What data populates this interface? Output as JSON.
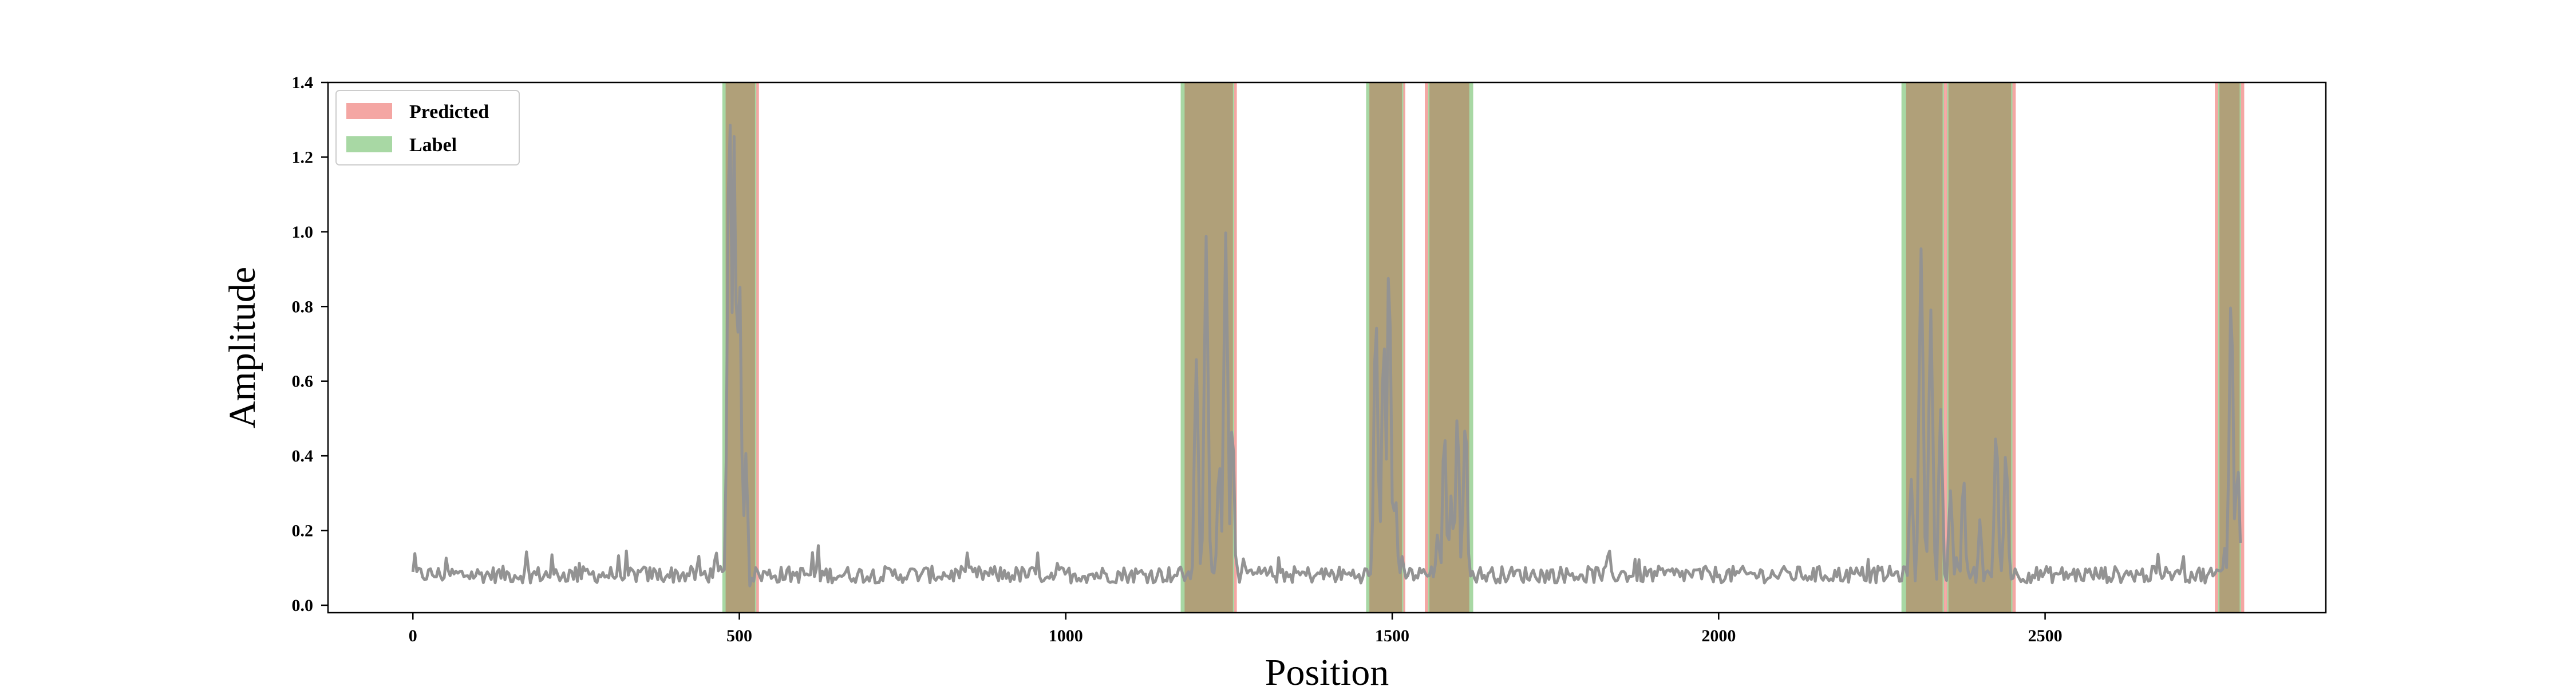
{
  "chart_data": {
    "type": "line",
    "title": "",
    "xlabel": "Position",
    "ylabel": "Amplitude",
    "xlim": [
      -130,
      2930
    ],
    "ylim": [
      -0.02,
      1.4
    ],
    "xticks": [
      0,
      500,
      1000,
      1500,
      2000,
      2500
    ],
    "yticks": [
      0.0,
      0.2,
      0.4,
      0.6,
      0.8,
      1.0,
      1.2,
      1.4
    ],
    "xtick_labels": [
      "0",
      "500",
      "1000",
      "1500",
      "2000",
      "2500"
    ],
    "ytick_labels": [
      "0.0",
      "0.2",
      "0.4",
      "0.6",
      "0.8",
      "1.0",
      "1.2",
      "1.4"
    ],
    "legend": {
      "location": "upper-left",
      "entries": [
        {
          "label": "Predicted",
          "color": "#f4a6a3"
        },
        {
          "label": "Label",
          "color": "#a8d8a4"
        }
      ]
    },
    "colors": {
      "signal": "#939393",
      "predicted": "#f4a6a3",
      "label": "#a8d8a4",
      "overlap": "#b0a079"
    },
    "predicted_intervals": [
      [
        477,
        530
      ],
      [
        1180,
        1262
      ],
      [
        1463,
        1520
      ],
      [
        1550,
        1620
      ],
      [
        2285,
        2347
      ],
      [
        2347,
        2455
      ],
      [
        2760,
        2805
      ]
    ],
    "label_intervals": [
      [
        474,
        526
      ],
      [
        1176,
        1258
      ],
      [
        1460,
        1517
      ],
      [
        1555,
        1624
      ],
      [
        2280,
        2345
      ],
      [
        2350,
        2450
      ],
      [
        2765,
        2800
      ]
    ],
    "baseline": {
      "mean": 0.082,
      "amplitude": 0.03,
      "from": 0,
      "to": 2800
    },
    "peaks": [
      {
        "x": 485,
        "y": 1.33
      },
      {
        "x": 492,
        "y": 1.25
      },
      {
        "x": 500,
        "y": 0.88
      },
      {
        "x": 510,
        "y": 0.4
      },
      {
        "x": 1200,
        "y": 0.67
      },
      {
        "x": 1215,
        "y": 0.97
      },
      {
        "x": 1235,
        "y": 0.4
      },
      {
        "x": 1245,
        "y": 1.01
      },
      {
        "x": 1255,
        "y": 0.5
      },
      {
        "x": 1475,
        "y": 0.79
      },
      {
        "x": 1487,
        "y": 0.72
      },
      {
        "x": 1495,
        "y": 0.9
      },
      {
        "x": 1505,
        "y": 0.3
      },
      {
        "x": 1570,
        "y": 0.2
      },
      {
        "x": 1580,
        "y": 0.45
      },
      {
        "x": 1590,
        "y": 0.3
      },
      {
        "x": 1600,
        "y": 0.5
      },
      {
        "x": 1612,
        "y": 0.51
      },
      {
        "x": 2295,
        "y": 0.35
      },
      {
        "x": 2310,
        "y": 0.97
      },
      {
        "x": 2325,
        "y": 0.8
      },
      {
        "x": 2340,
        "y": 0.53
      },
      {
        "x": 2355,
        "y": 0.3
      },
      {
        "x": 2375,
        "y": 0.33
      },
      {
        "x": 2400,
        "y": 0.22
      },
      {
        "x": 2425,
        "y": 0.46
      },
      {
        "x": 2440,
        "y": 0.43
      },
      {
        "x": 2775,
        "y": 0.15
      },
      {
        "x": 2785,
        "y": 0.84
      },
      {
        "x": 2795,
        "y": 0.39
      }
    ]
  }
}
